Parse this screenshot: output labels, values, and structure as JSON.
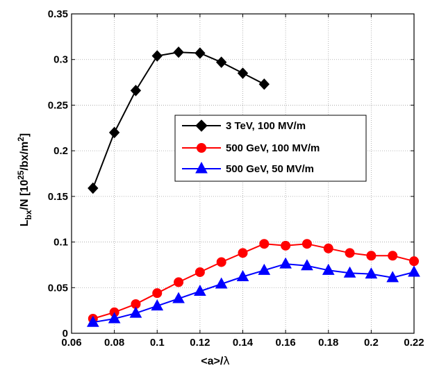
{
  "chart_data": {
    "type": "line",
    "xlabel_parts": [
      "<a>/",
      "λ"
    ],
    "ylabel_parts": [
      "L",
      "bx",
      "/N [10",
      "25",
      "/bx/m",
      "2",
      "]"
    ],
    "xlim": [
      0.06,
      0.22
    ],
    "ylim": [
      0,
      0.35
    ],
    "xticks": [
      0.06,
      0.08,
      0.1,
      0.12,
      0.14,
      0.16,
      0.18,
      0.2,
      0.22
    ],
    "xtick_labels": [
      "0.06",
      "0.08",
      "0.1",
      "0.12",
      "0.14",
      "0.16",
      "0.18",
      "0.2",
      "0.22"
    ],
    "yticks": [
      0,
      0.05,
      0.1,
      0.15,
      0.2,
      0.25,
      0.3,
      0.35
    ],
    "ytick_labels": [
      "0",
      "0.05",
      "0.1",
      "0.15",
      "0.2",
      "0.25",
      "0.3",
      "0.35"
    ],
    "grid": true,
    "legend_position": "center-right",
    "series": [
      {
        "name": "3 TeV, 100 MV/m",
        "color": "#000000",
        "marker": "diamond",
        "x": [
          0.07,
          0.08,
          0.09,
          0.1,
          0.11,
          0.12,
          0.13,
          0.14,
          0.15
        ],
        "y": [
          0.159,
          0.22,
          0.266,
          0.304,
          0.308,
          0.307,
          0.297,
          0.285,
          0.273
        ]
      },
      {
        "name": "500 GeV, 100 MV/m",
        "color": "#ff0000",
        "marker": "circle",
        "x": [
          0.07,
          0.08,
          0.09,
          0.1,
          0.11,
          0.12,
          0.13,
          0.14,
          0.15,
          0.16,
          0.17,
          0.18,
          0.19,
          0.2,
          0.21,
          0.22
        ],
        "y": [
          0.016,
          0.023,
          0.032,
          0.044,
          0.056,
          0.067,
          0.078,
          0.088,
          0.098,
          0.096,
          0.098,
          0.093,
          0.088,
          0.085,
          0.085,
          0.079
        ]
      },
      {
        "name": "500 GeV, 50 MV/m",
        "color": "#0000ff",
        "marker": "triangle",
        "x": [
          0.07,
          0.08,
          0.09,
          0.1,
          0.11,
          0.12,
          0.13,
          0.14,
          0.15,
          0.16,
          0.17,
          0.18,
          0.19,
          0.2,
          0.21,
          0.22
        ],
        "y": [
          0.012,
          0.016,
          0.022,
          0.03,
          0.038,
          0.046,
          0.054,
          0.062,
          0.069,
          0.076,
          0.074,
          0.069,
          0.066,
          0.065,
          0.061,
          0.067
        ]
      }
    ]
  }
}
